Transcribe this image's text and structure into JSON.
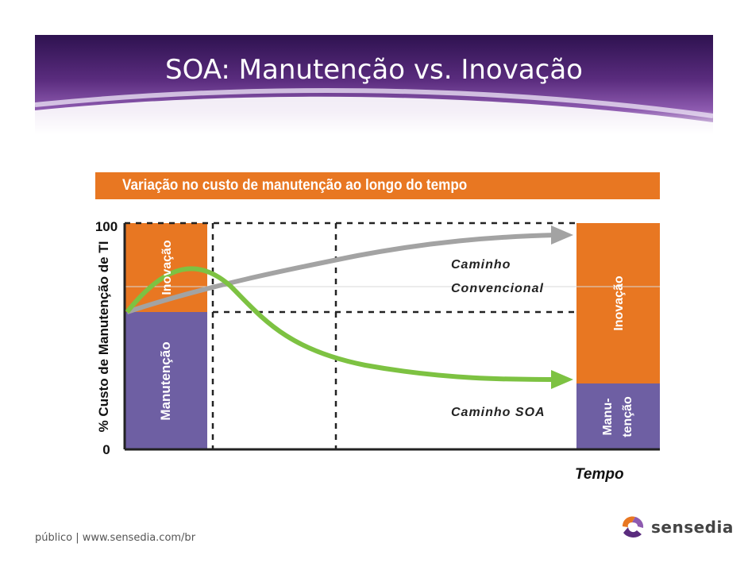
{
  "slide": {
    "title": "SOA: Manutenção vs. Inovação",
    "footer": "público | www.sensedia.com/br",
    "logo_text": "sensedia"
  },
  "chart": {
    "subtitle": "Variação no custo de manutenção ao longo do tempo",
    "y_label": "% Custo de Manutenção de TI",
    "y_top": "100",
    "y_bottom": "0",
    "x_label": "Tempo",
    "left_bar": {
      "top_label": "Inovação",
      "bottom_label": "Manutenção",
      "maintenance_fraction": 0.61
    },
    "right_bar": {
      "top_label": "Inovação",
      "bottom_label_line1": "Manu-",
      "bottom_label_line2": "tenção",
      "maintenance_fraction": 0.29
    },
    "conventional_label_line1": "Caminho",
    "conventional_label_line2": "Convencional",
    "soa_label": "Caminho SOA"
  },
  "colors": {
    "orange": "#E87722",
    "purple": "#6E5FA3",
    "green": "#7DC242",
    "gray": "#A3A3A3",
    "header": "#5A2C7E"
  }
}
